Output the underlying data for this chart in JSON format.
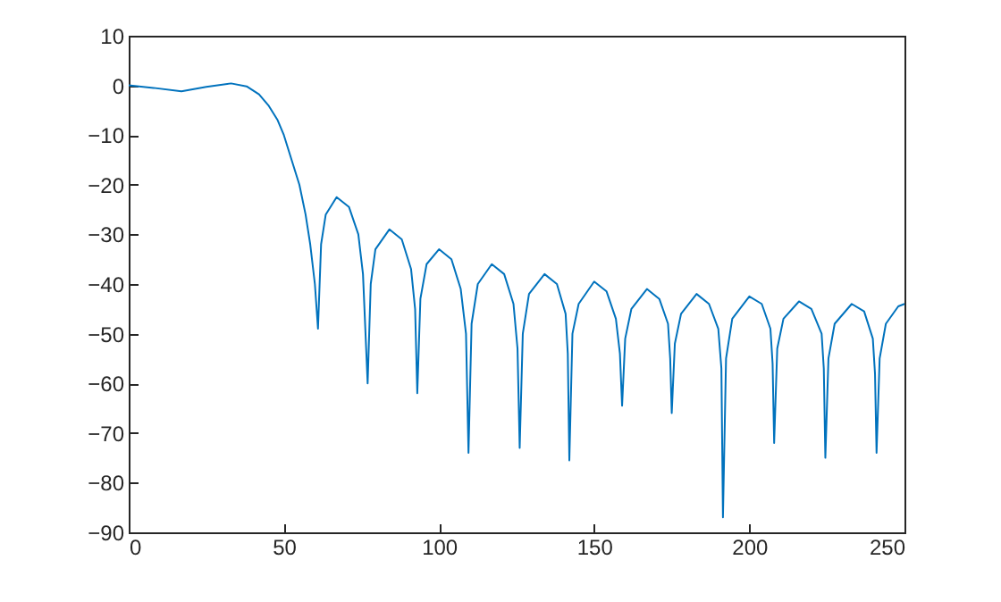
{
  "chart_data": {
    "type": "line",
    "xlim": [
      0,
      250
    ],
    "xticks": [
      0,
      50,
      100,
      150,
      200,
      250
    ],
    "ylim": [
      -90,
      10
    ],
    "yticks": [
      -90,
      -80,
      -70,
      -60,
      -50,
      -40,
      -30,
      -20,
      -10,
      0,
      10
    ],
    "x": [
      0,
      8,
      17,
      25,
      33,
      38,
      42,
      45,
      48,
      50,
      52,
      55,
      57,
      58.5,
      60,
      61,
      62,
      63.5,
      67,
      71,
      74,
      75.5,
      77,
      78,
      79.5,
      84,
      88,
      91,
      92.3,
      93,
      94,
      96,
      100,
      104,
      107,
      108.7,
      109.5,
      110.5,
      112.5,
      117,
      121,
      124,
      125.3,
      126,
      127,
      129,
      134,
      138,
      140.8,
      141.5,
      142,
      143,
      145,
      150,
      154,
      157,
      158.3,
      159,
      160,
      162,
      167,
      171,
      173.8,
      174.5,
      175,
      176,
      178,
      183,
      187,
      190,
      191,
      191.5,
      192.5,
      194.5,
      200,
      204,
      206.8,
      207.5,
      208,
      209,
      211,
      216,
      220,
      223.3,
      224,
      224.5,
      225.5,
      227.5,
      233,
      237,
      239.8,
      240.5,
      241,
      242,
      244,
      248,
      250
    ],
    "series": [
      {
        "color": "#0072bd",
        "values": [
          0,
          -0.5,
          -1.2,
          -0.3,
          0.4,
          -0.2,
          -1.8,
          -4,
          -7,
          -10,
          -14,
          -20,
          -26,
          -32,
          -40,
          -49,
          -32,
          -26,
          -22.5,
          -24.5,
          -30,
          -38,
          -60,
          -40,
          -33,
          -29,
          -31,
          -37,
          -45,
          -62,
          -43,
          -36,
          -33,
          -35,
          -41,
          -50,
          -74,
          -48,
          -40,
          -36,
          -38,
          -44,
          -53,
          -73,
          -50,
          -42,
          -38,
          -40,
          -46,
          -54,
          -75.5,
          -50,
          -44,
          -39.5,
          -41.5,
          -47,
          -54,
          -64.5,
          -51,
          -45,
          -41,
          -43,
          -48,
          -55,
          -66,
          -52,
          -46,
          -42,
          -44,
          -49,
          -57,
          -87,
          -55,
          -47,
          -42.5,
          -44,
          -49,
          -56,
          -72,
          -53,
          -47,
          -43.5,
          -45,
          -50,
          -57,
          -75,
          -55,
          -48,
          -44,
          -45.5,
          -51,
          -58,
          -74,
          -55,
          -48,
          -44.5,
          -44
        ]
      }
    ]
  }
}
